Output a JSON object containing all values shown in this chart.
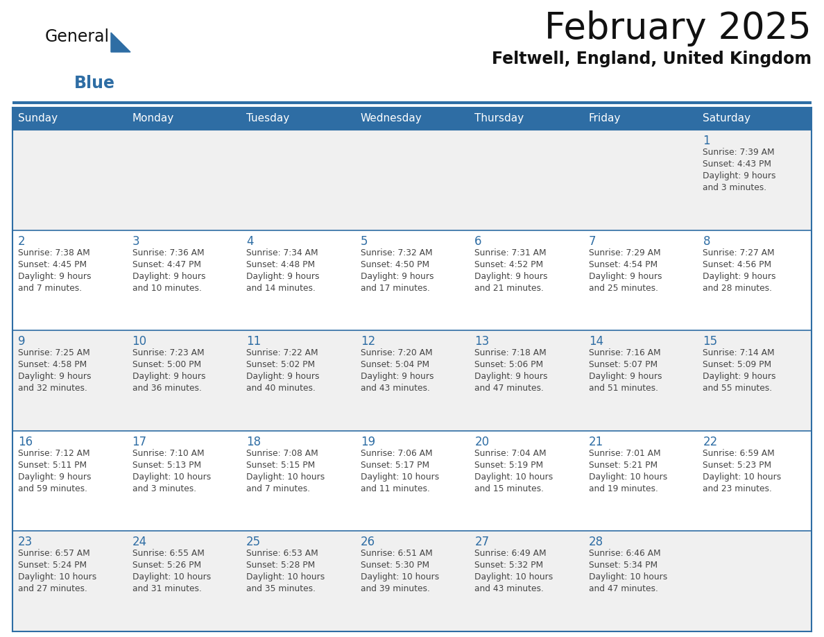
{
  "title": "February 2025",
  "subtitle": "Feltwell, England, United Kingdom",
  "header_bg": "#2E6DA4",
  "header_text_color": "#FFFFFF",
  "days_of_week": [
    "Sunday",
    "Monday",
    "Tuesday",
    "Wednesday",
    "Thursday",
    "Friday",
    "Saturday"
  ],
  "cell_bg_odd": "#F0F0F0",
  "cell_bg_even": "#FFFFFF",
  "cell_border_color": "#2E6DA4",
  "day_number_color": "#2E6DA4",
  "info_text_color": "#444444",
  "logo_general_color": "#111111",
  "logo_blue_color": "#2E6DA4",
  "calendar_data": [
    [
      null,
      null,
      null,
      null,
      null,
      null,
      {
        "day": 1,
        "sunrise": "7:39 AM",
        "sunset": "4:43 PM",
        "daylight": "9 hours and 3 minutes."
      }
    ],
    [
      {
        "day": 2,
        "sunrise": "7:38 AM",
        "sunset": "4:45 PM",
        "daylight": "9 hours and 7 minutes."
      },
      {
        "day": 3,
        "sunrise": "7:36 AM",
        "sunset": "4:47 PM",
        "daylight": "9 hours and 10 minutes."
      },
      {
        "day": 4,
        "sunrise": "7:34 AM",
        "sunset": "4:48 PM",
        "daylight": "9 hours and 14 minutes."
      },
      {
        "day": 5,
        "sunrise": "7:32 AM",
        "sunset": "4:50 PM",
        "daylight": "9 hours and 17 minutes."
      },
      {
        "day": 6,
        "sunrise": "7:31 AM",
        "sunset": "4:52 PM",
        "daylight": "9 hours and 21 minutes."
      },
      {
        "day": 7,
        "sunrise": "7:29 AM",
        "sunset": "4:54 PM",
        "daylight": "9 hours and 25 minutes."
      },
      {
        "day": 8,
        "sunrise": "7:27 AM",
        "sunset": "4:56 PM",
        "daylight": "9 hours and 28 minutes."
      }
    ],
    [
      {
        "day": 9,
        "sunrise": "7:25 AM",
        "sunset": "4:58 PM",
        "daylight": "9 hours and 32 minutes."
      },
      {
        "day": 10,
        "sunrise": "7:23 AM",
        "sunset": "5:00 PM",
        "daylight": "9 hours and 36 minutes."
      },
      {
        "day": 11,
        "sunrise": "7:22 AM",
        "sunset": "5:02 PM",
        "daylight": "9 hours and 40 minutes."
      },
      {
        "day": 12,
        "sunrise": "7:20 AM",
        "sunset": "5:04 PM",
        "daylight": "9 hours and 43 minutes."
      },
      {
        "day": 13,
        "sunrise": "7:18 AM",
        "sunset": "5:06 PM",
        "daylight": "9 hours and 47 minutes."
      },
      {
        "day": 14,
        "sunrise": "7:16 AM",
        "sunset": "5:07 PM",
        "daylight": "9 hours and 51 minutes."
      },
      {
        "day": 15,
        "sunrise": "7:14 AM",
        "sunset": "5:09 PM",
        "daylight": "9 hours and 55 minutes."
      }
    ],
    [
      {
        "day": 16,
        "sunrise": "7:12 AM",
        "sunset": "5:11 PM",
        "daylight": "9 hours and 59 minutes."
      },
      {
        "day": 17,
        "sunrise": "7:10 AM",
        "sunset": "5:13 PM",
        "daylight": "10 hours and 3 minutes."
      },
      {
        "day": 18,
        "sunrise": "7:08 AM",
        "sunset": "5:15 PM",
        "daylight": "10 hours and 7 minutes."
      },
      {
        "day": 19,
        "sunrise": "7:06 AM",
        "sunset": "5:17 PM",
        "daylight": "10 hours and 11 minutes."
      },
      {
        "day": 20,
        "sunrise": "7:04 AM",
        "sunset": "5:19 PM",
        "daylight": "10 hours and 15 minutes."
      },
      {
        "day": 21,
        "sunrise": "7:01 AM",
        "sunset": "5:21 PM",
        "daylight": "10 hours and 19 minutes."
      },
      {
        "day": 22,
        "sunrise": "6:59 AM",
        "sunset": "5:23 PM",
        "daylight": "10 hours and 23 minutes."
      }
    ],
    [
      {
        "day": 23,
        "sunrise": "6:57 AM",
        "sunset": "5:24 PM",
        "daylight": "10 hours and 27 minutes."
      },
      {
        "day": 24,
        "sunrise": "6:55 AM",
        "sunset": "5:26 PM",
        "daylight": "10 hours and 31 minutes."
      },
      {
        "day": 25,
        "sunrise": "6:53 AM",
        "sunset": "5:28 PM",
        "daylight": "10 hours and 35 minutes."
      },
      {
        "day": 26,
        "sunrise": "6:51 AM",
        "sunset": "5:30 PM",
        "daylight": "10 hours and 39 minutes."
      },
      {
        "day": 27,
        "sunrise": "6:49 AM",
        "sunset": "5:32 PM",
        "daylight": "10 hours and 43 minutes."
      },
      {
        "day": 28,
        "sunrise": "6:46 AM",
        "sunset": "5:34 PM",
        "daylight": "10 hours and 47 minutes."
      },
      null
    ]
  ]
}
